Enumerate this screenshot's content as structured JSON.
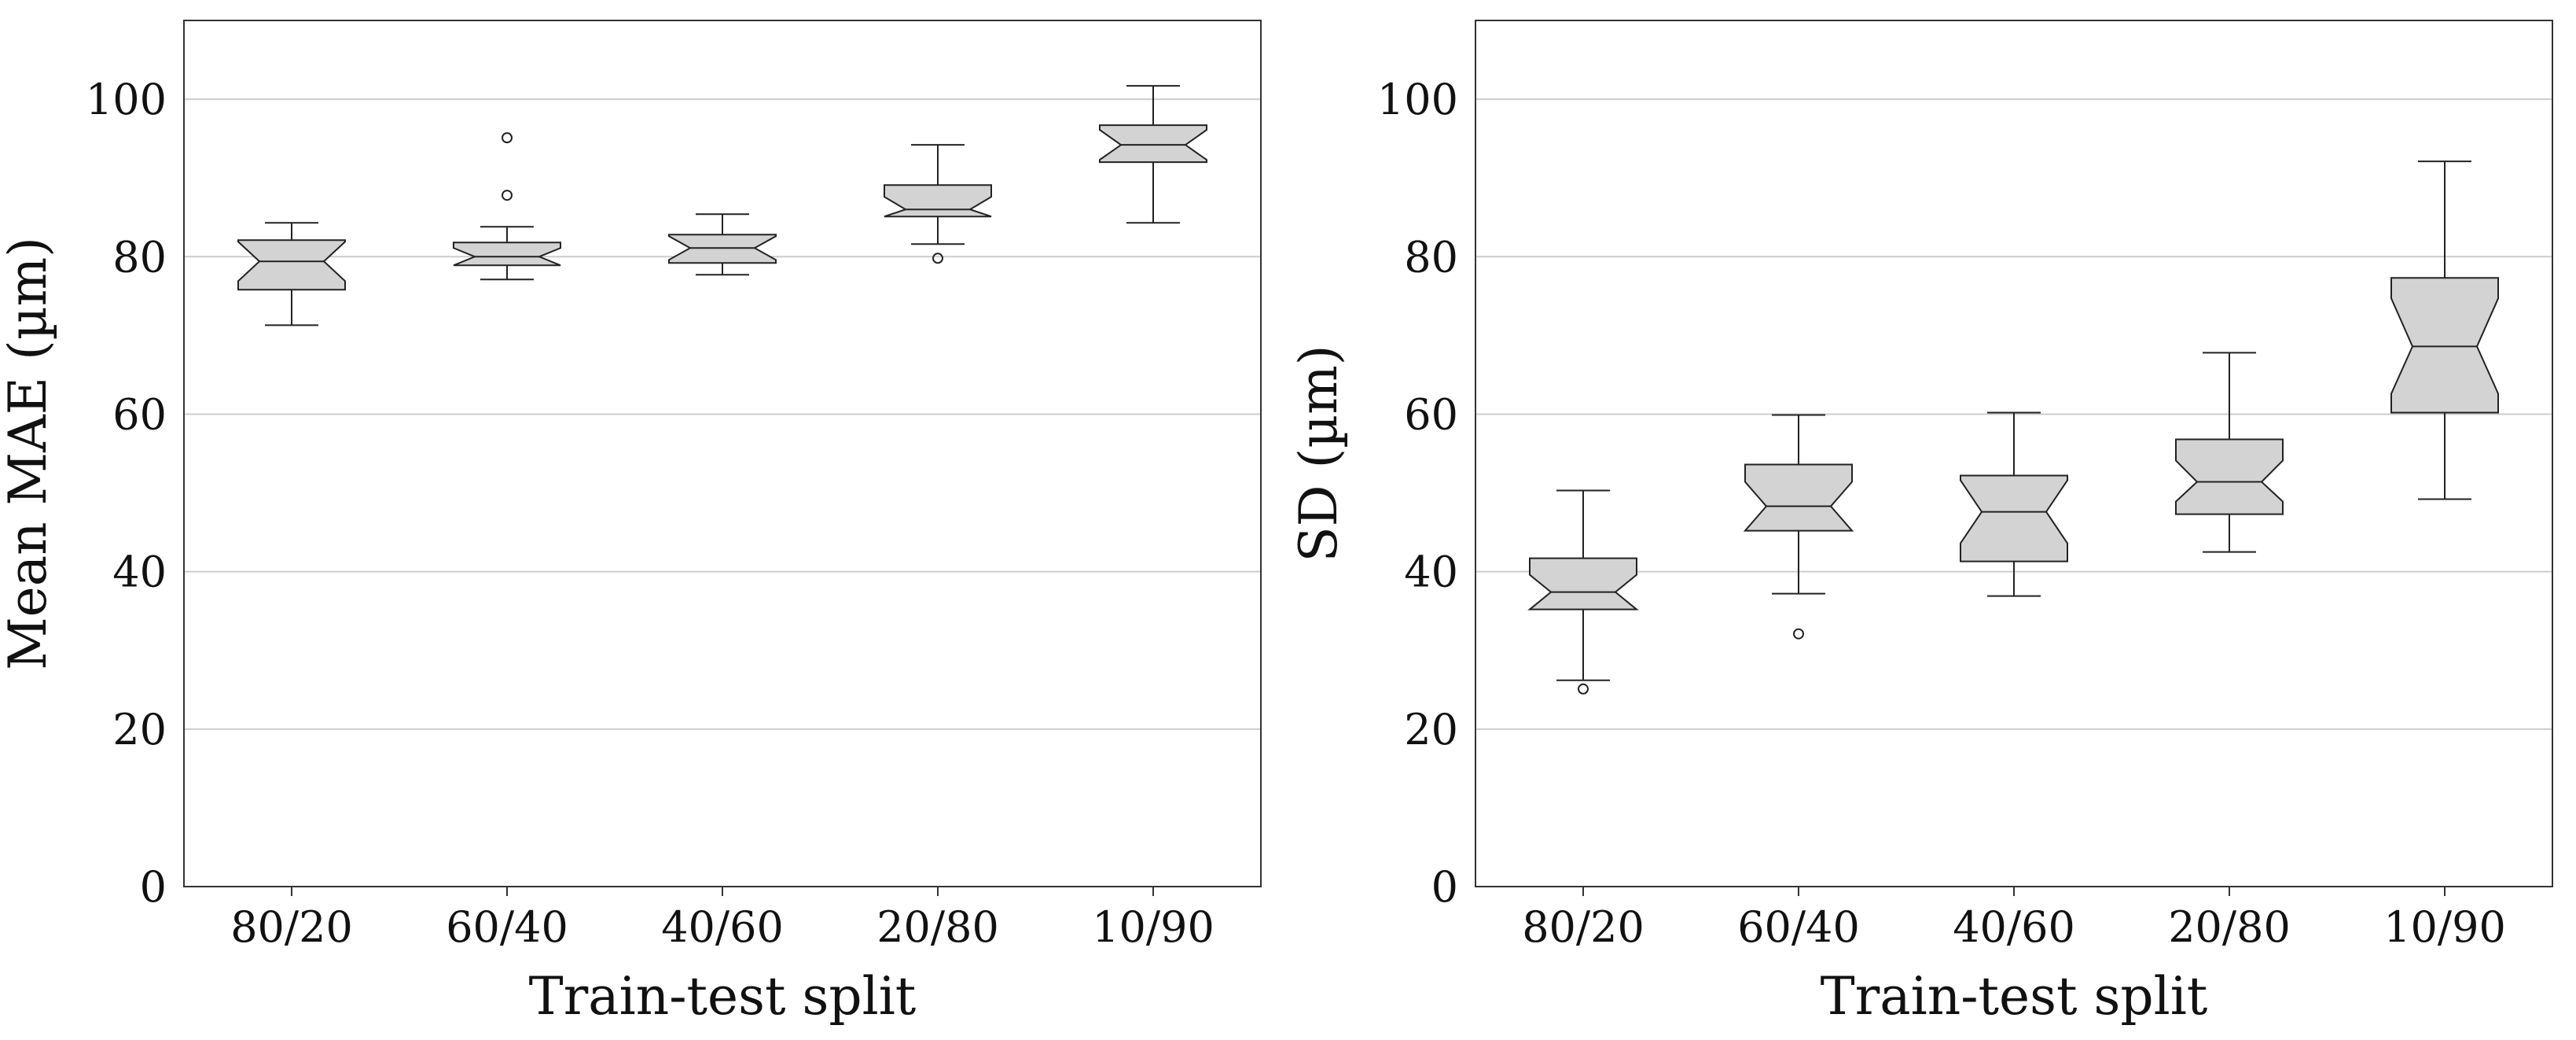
{
  "chart_data": [
    {
      "type": "boxplot",
      "notched": true,
      "xlabel": "Train-test split",
      "ylabel": "Mean MAE (µm)",
      "categories": [
        "80/20",
        "60/40",
        "40/60",
        "20/80",
        "10/90"
      ],
      "ylim": [
        0,
        110
      ],
      "yticks": [
        "0",
        "20",
        "40",
        "60",
        "80",
        "100"
      ],
      "grid": "horizontal",
      "box_color": "#d3d3d3",
      "boxes": [
        {
          "whisker_low": 71.3,
          "q1": 75.8,
          "median": 79.4,
          "q3": 82.1,
          "whisker_high": 84.3,
          "notch_low": 76.9,
          "notch_high": 81.9,
          "outliers": []
        },
        {
          "whisker_low": 77.1,
          "q1": 78.9,
          "median": 80.0,
          "q3": 81.8,
          "whisker_high": 83.8,
          "notch_low": 78.9,
          "notch_high": 81.1,
          "outliers": [
            95.1,
            87.8
          ]
        },
        {
          "whisker_low": 77.7,
          "q1": 79.2,
          "median": 81.1,
          "q3": 82.8,
          "whisker_high": 85.4,
          "notch_low": 79.6,
          "notch_high": 82.6,
          "outliers": []
        },
        {
          "whisker_low": 81.6,
          "q1": 85.1,
          "median": 86.0,
          "q3": 89.1,
          "whisker_high": 94.2,
          "notch_low": 85.1,
          "notch_high": 87.6,
          "outliers": [
            79.8
          ]
        },
        {
          "whisker_low": 84.3,
          "q1": 92.0,
          "median": 94.2,
          "q3": 96.7,
          "whisker_high": 101.7,
          "notch_low": 92.3,
          "notch_high": 96.1,
          "outliers": []
        }
      ]
    },
    {
      "type": "boxplot",
      "notched": true,
      "xlabel": "Train-test split",
      "ylabel": "SD (µm)",
      "categories": [
        "80/20",
        "60/40",
        "40/60",
        "20/80",
        "10/90"
      ],
      "ylim": [
        0,
        110
      ],
      "yticks": [
        "0",
        "20",
        "40",
        "60",
        "80",
        "100"
      ],
      "grid": "horizontal",
      "box_color": "#d3d3d3",
      "boxes": [
        {
          "whisker_low": 26.2,
          "q1": 35.2,
          "median": 37.4,
          "q3": 41.7,
          "whisker_high": 50.3,
          "notch_low": 35.2,
          "notch_high": 39.6,
          "outliers": [
            25.1
          ]
        },
        {
          "whisker_low": 37.2,
          "q1": 45.2,
          "median": 48.3,
          "q3": 53.6,
          "whisker_high": 59.9,
          "notch_low": 45.2,
          "notch_high": 51.4,
          "outliers": [
            32.1
          ]
        },
        {
          "whisker_low": 36.9,
          "q1": 41.3,
          "median": 47.6,
          "q3": 52.2,
          "whisker_high": 60.2,
          "notch_low": 43.6,
          "notch_high": 51.6,
          "outliers": []
        },
        {
          "whisker_low": 42.5,
          "q1": 47.3,
          "median": 51.4,
          "q3": 56.8,
          "whisker_high": 67.8,
          "notch_low": 48.9,
          "notch_high": 54.1,
          "outliers": []
        },
        {
          "whisker_low": 49.2,
          "q1": 60.2,
          "median": 68.6,
          "q3": 77.3,
          "whisker_high": 92.1,
          "notch_low": 62.6,
          "notch_high": 74.7,
          "outliers": []
        }
      ]
    }
  ]
}
